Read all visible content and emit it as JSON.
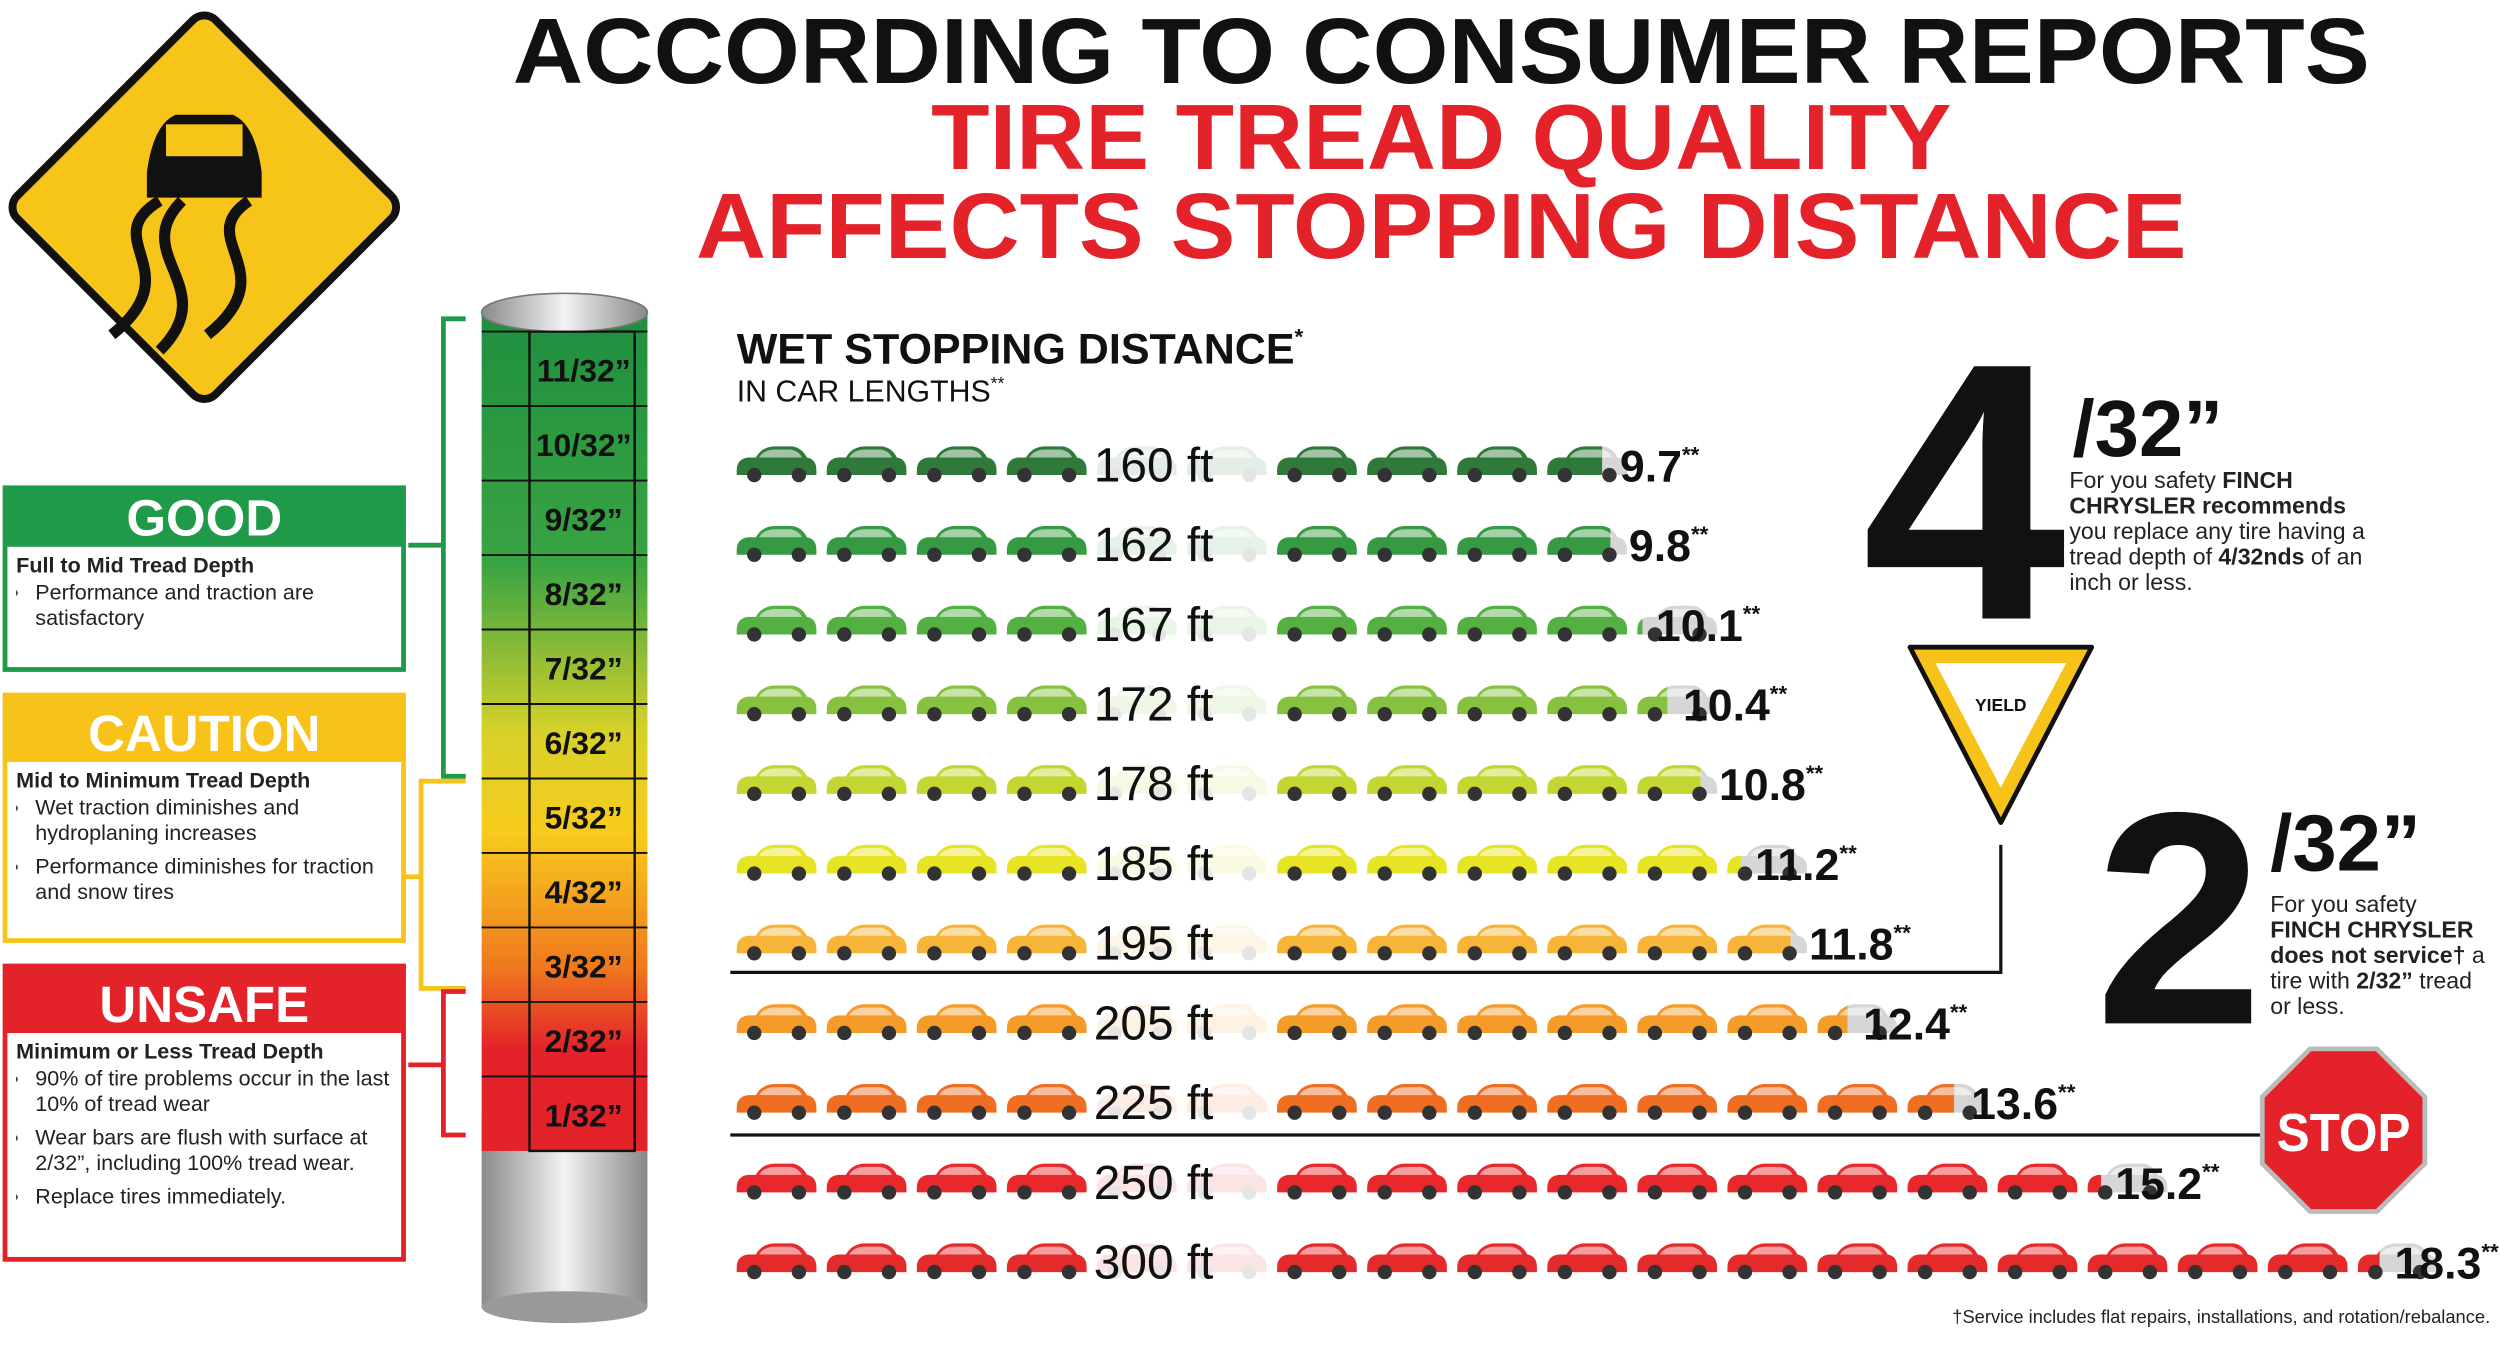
{
  "header": {
    "line1": "ACCORDING TO CONSUMER REPORTS",
    "line2": "TIRE TREAD QUALITY",
    "line3": "AFFECTS STOPPING DISTANCE"
  },
  "stopping": {
    "title": "WET STOPPING DISTANCE",
    "title_mark": "*",
    "subtitle": "IN CAR LENGTHS",
    "subtitle_mark": "**",
    "row_mark": "**",
    "rows": [
      {
        "distance": "160 ft",
        "car_lengths": 9.7,
        "color": "#2f7a3a"
      },
      {
        "distance": "162 ft",
        "car_lengths": 9.8,
        "color": "#369a42"
      },
      {
        "distance": "167 ft",
        "car_lengths": 10.1,
        "color": "#55b043"
      },
      {
        "distance": "172 ft",
        "car_lengths": 10.4,
        "color": "#86c23f"
      },
      {
        "distance": "178 ft",
        "car_lengths": 10.8,
        "color": "#c3d631"
      },
      {
        "distance": "185 ft",
        "car_lengths": 11.2,
        "color": "#e6e424"
      },
      {
        "distance": "195 ft",
        "car_lengths": 11.8,
        "color": "#f6b538"
      },
      {
        "distance": "205 ft",
        "car_lengths": 12.4,
        "color": "#f59b2a"
      },
      {
        "distance": "225 ft",
        "car_lengths": 13.6,
        "color": "#f06e22"
      },
      {
        "distance": "250 ft",
        "car_lengths": 15.2,
        "color": "#e8282b"
      },
      {
        "distance": "300 ft",
        "car_lengths": 18.3,
        "color": "#e42a2a"
      }
    ]
  },
  "gauge": [
    "11/32”",
    "10/32”",
    "9/32”",
    "8/32”",
    "7/32”",
    "6/32”",
    "5/32”",
    "4/32”",
    "3/32”",
    "2/32”",
    "1/32”"
  ],
  "legend": [
    {
      "title": "GOOD",
      "color": "#1f9a48",
      "subtitle": "Full to Mid Tread Depth",
      "bullets": [
        "Performance and traction are satisfactory"
      ]
    },
    {
      "title": "CAUTION",
      "color": "#f7c31a",
      "subtitle": "Mid to Minimum Tread Depth",
      "bullets": [
        "Wet traction diminishes and hydroplaning increases",
        "Performance diminishes for traction and snow tires"
      ]
    },
    {
      "title": "UNSAFE",
      "color": "#e3222a",
      "subtitle": "Minimum or Less Tread Depth",
      "bullets": [
        "90% of tire problems occur in the last 10% of tread wear",
        "Wear bars are flush with surface at 2/32”, including 100% tread wear.",
        "Replace tires immediately."
      ]
    }
  ],
  "four": {
    "big": "4",
    "unit": "/32”",
    "note": [
      "For you safety ",
      "FINCH CHRYSLER recommends",
      " you replace any tire having a tread depth of ",
      "4/32nds",
      " of an inch or less."
    ]
  },
  "yield": "YIELD",
  "two": {
    "big": "2",
    "unit": "/32”",
    "note": [
      "For you safety ",
      "FINCH CHRYSLER does not service†",
      " a tire with ",
      "2/32”",
      " tread or less."
    ]
  },
  "stop": "STOP",
  "footnote": "†Service includes flat repairs, installations, and rotation/rebalance."
}
